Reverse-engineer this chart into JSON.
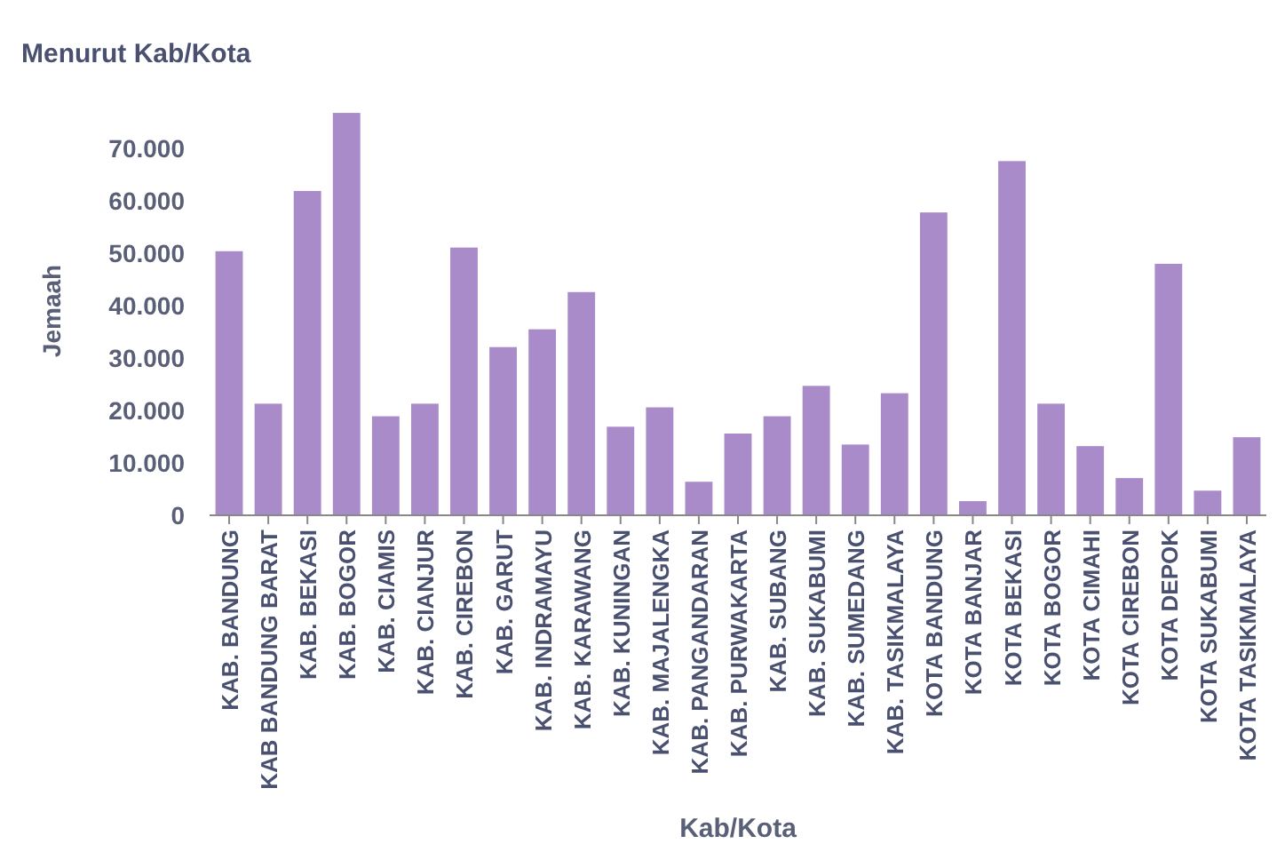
{
  "chart_data": {
    "type": "bar",
    "title": "Menurut Kab/Kota",
    "xlabel": "Kab/Kota",
    "ylabel": "Jemaah",
    "categories": [
      "KAB. BANDUNG",
      "KAB BANDUNG BARAT",
      "KAB. BEKASI",
      "KAB. BOGOR",
      "KAB. CIAMIS",
      "KAB. CIANJUR",
      "KAB. CIREBON",
      "KAB. GARUT",
      "KAB. INDRAMAYU",
      "KAB. KARAWANG",
      "KAB. KUNINGAN",
      "KAB. MAJALENGKA",
      "KAB. PANGANDARAN",
      "KAB. PURWAKARTA",
      "KAB. SUBANG",
      "KAB. SUKABUMI",
      "KAB. SUMEDANG",
      "KAB. TASIKMALAYA",
      "KOTA BANDUNG",
      "KOTA BANJAR",
      "KOTA BEKASI",
      "KOTA BOGOR",
      "KOTA CIMAHI",
      "KOTA CIREBON",
      "KOTA DEPOK",
      "KOTA SUKABUMI",
      "KOTA TASIKMALAYA"
    ],
    "values": [
      50400,
      21300,
      61900,
      76800,
      18900,
      21300,
      51100,
      32100,
      35500,
      42600,
      16900,
      20600,
      6400,
      15600,
      18900,
      24700,
      13500,
      23300,
      57800,
      2700,
      67600,
      21300,
      13200,
      7100,
      48000,
      4700,
      14900
    ],
    "color": "#a98bc9",
    "ylim": [
      0,
      78000
    ],
    "yticks": [
      {
        "value": 0,
        "label": "0"
      },
      {
        "value": 10000,
        "label": "10.000"
      },
      {
        "value": 20000,
        "label": "20.000"
      },
      {
        "value": 30000,
        "label": "30.000"
      },
      {
        "value": 40000,
        "label": "40.000"
      },
      {
        "value": 50000,
        "label": "50.000"
      },
      {
        "value": 60000,
        "label": "60.000"
      },
      {
        "value": 70000,
        "label": "70.000"
      }
    ],
    "grid": false
  }
}
